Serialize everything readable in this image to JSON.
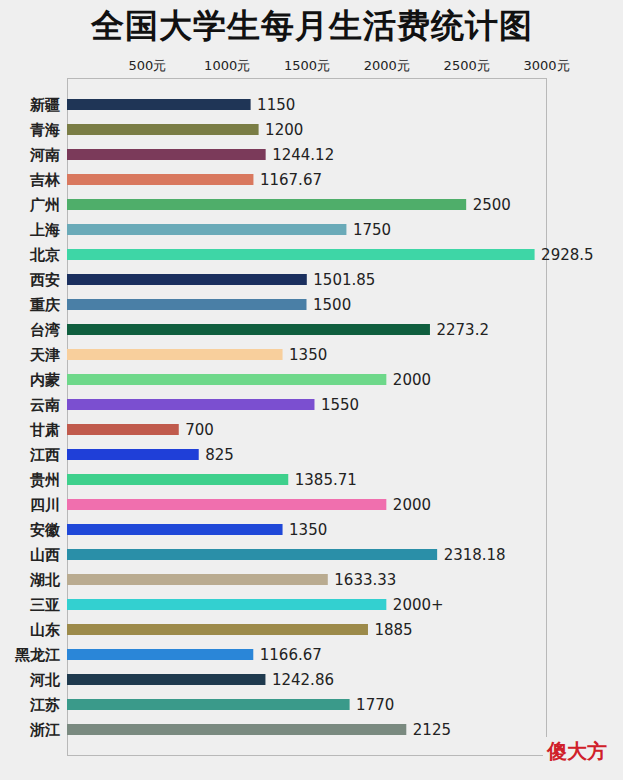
{
  "chart_data": {
    "type": "bar",
    "title": "全国大学生每月生活费统计图",
    "orientation": "horizontal",
    "data_labels": true,
    "categories": [
      "新疆",
      "青海",
      "河南",
      "吉林",
      "广州",
      "上海",
      "北京",
      "西安",
      "重庆",
      "台湾",
      "天津",
      "内蒙",
      "云南",
      "甘肃",
      "江西",
      "贵州",
      "四川",
      "安徽",
      "山西",
      "湖北",
      "三亚",
      "山东",
      "黑龙江",
      "河北",
      "江苏",
      "浙江"
    ],
    "values": [
      1150,
      1200,
      1244.12,
      1167.67,
      2500,
      1750,
      2928.5,
      1501.85,
      1500,
      2273.2,
      1350,
      2000,
      1550,
      700,
      825,
      1385.71,
      2000,
      1350,
      2318.18,
      1633.33,
      2000,
      1885,
      1166.67,
      1242.86,
      1770,
      2125
    ],
    "value_labels": [
      "1150",
      "1200",
      "1244.12",
      "1167.67",
      "2500",
      "1750",
      "2928.5",
      "1501.85",
      "1500",
      "2273.2",
      "1350",
      "2000",
      "1550",
      "700",
      "825",
      "1385.71",
      "2000",
      "1350",
      "2318.18",
      "1633.33",
      "2000+",
      "1885",
      "1166.67",
      "1242.86",
      "1770",
      "2125"
    ],
    "colors": [
      "#1f3556",
      "#7a7d45",
      "#7b3a5a",
      "#d9785e",
      "#4fae6a",
      "#6aaab8",
      "#3ed6a6",
      "#1a2f5e",
      "#4a7fa6",
      "#0f5e3e",
      "#f8cf9c",
      "#6ed88a",
      "#7b4fd0",
      "#c05a4c",
      "#1f3fd8",
      "#3ed08c",
      "#f06fae",
      "#1f48d8",
      "#2a8fa8",
      "#b9ab90",
      "#33d0d0",
      "#9c8a4a",
      "#2a86d8",
      "#1f3a4e",
      "#3a9a8a",
      "#7a8a80"
    ],
    "xlim": [
      0,
      3000
    ],
    "xticks": [
      {
        "value": 500,
        "label": "500元"
      },
      {
        "value": 1000,
        "label": "1000元"
      },
      {
        "value": 1500,
        "label": "1500元"
      },
      {
        "value": 2000,
        "label": "2000元"
      },
      {
        "value": 2500,
        "label": "2500元"
      },
      {
        "value": 3000,
        "label": "3000元"
      }
    ],
    "grid": false,
    "annotations": [
      "傻大方"
    ]
  }
}
